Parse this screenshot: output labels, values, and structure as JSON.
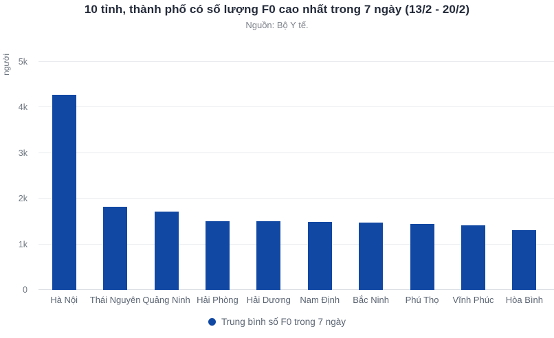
{
  "header": {
    "title": "10 tỉnh, thành phố có số lượng F0 cao nhất trong 7 ngày (13/2 - 20/2)",
    "subtitle": "Nguồn: Bộ Y tế."
  },
  "chart_data": {
    "type": "bar",
    "title": "10 tỉnh, thành phố có số lượng F0 cao nhất trong 7 ngày (13/2 - 20/2)",
    "subtitle": "Nguồn: Bộ Y tế.",
    "categories": [
      "Hà Nội",
      "Thái Nguyên",
      "Quảng Ninh",
      "Hải Phòng",
      "Hải Dương",
      "Nam Định",
      "Bắc Ninh",
      "Phú Thọ",
      "Vĩnh Phúc",
      "Hòa Bình"
    ],
    "values": [
      4270,
      1825,
      1715,
      1510,
      1500,
      1490,
      1475,
      1445,
      1415,
      1310
    ],
    "series_name": "Trung bình số F0 trong 7 ngày",
    "xlabel": "",
    "ylabel": "người",
    "ylim": [
      0,
      5000
    ],
    "y_ticks": [
      "0",
      "1k",
      "2k",
      "3k",
      "4k",
      "5k"
    ],
    "grid": true,
    "legend": {
      "label": "Trung bình số F0 trong 7 ngày",
      "position": "bottom"
    },
    "bar_color": "#1148a3"
  },
  "colors": {
    "accent": "#1148a3",
    "title_text": "#242b3a",
    "muted_text": "#7d828a",
    "axis_text": "#6e7680",
    "category_text": "#5a6472",
    "gridline": "#e9ebee"
  }
}
